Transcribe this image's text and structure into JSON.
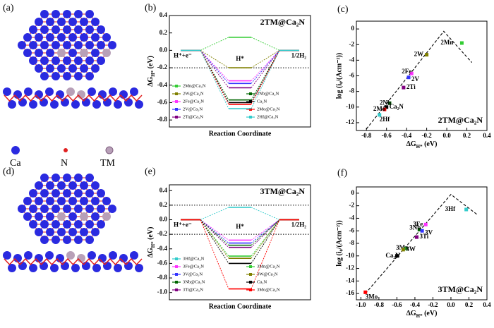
{
  "panel_labels": [
    "(a)",
    "(b)",
    "(c)",
    "(d)",
    "(e)",
    "(f)"
  ],
  "structure_legend": [
    "Ca",
    "N",
    "TM"
  ],
  "chart_data": [
    {
      "type": "energy_diagram",
      "title": "2TM@Ca₂N",
      "ylabel": {
        "main": "ΔG",
        "sub": "H*",
        "rest": " (eV)"
      },
      "xlabel": "Reaction Coordinate",
      "states": [
        "H⁺+e⁻",
        "H*",
        "1/2H₂"
      ],
      "ylim": [
        -0.88,
        0.4
      ],
      "yticks": [
        0.4,
        0.2,
        {
          "value": 0,
          "label": "0.0"
        },
        -0.2,
        -0.4,
        -0.6,
        -0.8
      ],
      "reference_lines": [
        -0.2
      ],
      "series": [
        {
          "name": "2Mn@Ca₂N",
          "color": "#33cc33",
          "values": [
            0,
            0.15,
            0
          ]
        },
        {
          "name": "2W@Ca₂N",
          "color": "#808000",
          "values": [
            0,
            -0.2,
            0
          ]
        },
        {
          "name": "2Fe@Ca₂N",
          "color": "#ff33ff",
          "values": [
            0,
            -0.35,
            0
          ]
        },
        {
          "name": "2V@Ca₂N",
          "color": "#3333ff",
          "values": [
            0,
            -0.38,
            0
          ]
        },
        {
          "name": "2Ti@Ca₂N",
          "color": "#800080",
          "values": [
            0,
            -0.43,
            0
          ]
        },
        {
          "name": "2Nb@Ca₂N",
          "color": "#006600",
          "values": [
            0,
            -0.57,
            0
          ]
        },
        {
          "name": "Ca₂N",
          "color": "#000000",
          "values": [
            0,
            -0.6,
            0
          ]
        },
        {
          "name": "2Mo@Ca₂N",
          "color": "#ff0000",
          "values": [
            0,
            -0.62,
            0
          ]
        },
        {
          "name": "2Hf@Ca₂N",
          "color": "#33cccc",
          "values": [
            0,
            -0.67,
            0
          ]
        }
      ]
    },
    {
      "type": "volcano",
      "title": "2TM@Ca₂N",
      "ylabel": "log (i₀/(Acm⁻²))",
      "xlabel": {
        "main": "ΔG",
        "sub": "H*",
        "rest": " (eV)"
      },
      "xlim": [
        -0.9,
        0.4
      ],
      "ylim": [
        -13,
        1
      ],
      "xticks": [
        -0.8,
        -0.6,
        -0.4,
        -0.2,
        {
          "value": 0,
          "label": "0.0"
        },
        0.2,
        0.4
      ],
      "yticks": [
        0,
        -2,
        -4,
        -6,
        -8,
        -10,
        -12
      ],
      "volcano_line": {
        "x": [
          -0.8,
          -0.03,
          0.25
        ],
        "y": [
          -12.8,
          -0.3,
          -4.3
        ]
      },
      "points": {
        "labels": [
          "2Mn",
          "2W",
          "2Fe",
          "2V",
          "2Ti",
          "2Nb",
          "Ca₂N",
          "2Mo",
          "2Hf"
        ],
        "colors": [
          "#33cc33",
          "#808000",
          "#ff33ff",
          "#3333ff",
          "#800080",
          "#006600",
          "#000000",
          "#ff0000",
          "#33cccc"
        ],
        "x": [
          0.15,
          -0.2,
          -0.35,
          -0.38,
          -0.43,
          -0.57,
          -0.6,
          -0.62,
          -0.67
        ],
        "y": [
          -1.8,
          -3.3,
          -5.7,
          -6.2,
          -7.5,
          -9.5,
          -10,
          -10.3,
          -11
        ]
      }
    },
    {
      "type": "energy_diagram",
      "title": "3TM@Ca₂N",
      "ylabel": {
        "main": "ΔG",
        "sub": "H*",
        "rest": " (eV)"
      },
      "xlabel": "Reaction Coordinate",
      "states": [
        "H⁺+e⁻",
        "H*",
        "1/2H₂"
      ],
      "ylim": [
        -1.1,
        0.48
      ],
      "yticks": [
        0.4,
        0.2,
        {
          "value": 0,
          "label": "0.0"
        },
        -0.2,
        -0.4,
        -0.6,
        -0.8,
        {
          "value": -1,
          "label": "-1.0"
        }
      ],
      "reference_lines": [
        0.2,
        -0.2
      ],
      "series": [
        {
          "name": "3Hf@Ca₂N",
          "color": "#33cccc",
          "values": [
            0,
            0.17,
            0
          ]
        },
        {
          "name": "3Fe@Ca₂N",
          "color": "#ff33ff",
          "values": [
            0,
            -0.28,
            0
          ]
        },
        {
          "name": "3V@Ca₂N",
          "color": "#3333ff",
          "values": [
            0,
            -0.32,
            0
          ]
        },
        {
          "name": "3Nb@Ca₂N",
          "color": "#006600",
          "values": [
            0,
            -0.35,
            0
          ]
        },
        {
          "name": "3Ti@Ca₂N",
          "color": "#800080",
          "values": [
            0,
            -0.38,
            0
          ]
        },
        {
          "name": "3Mn@Ca₂N",
          "color": "#33cc33",
          "values": [
            0,
            -0.5,
            0
          ]
        },
        {
          "name": "3W@Ca₂N",
          "color": "#808000",
          "values": [
            0,
            -0.53,
            0
          ]
        },
        {
          "name": "Ca₂N",
          "color": "#000000",
          "values": [
            0,
            -0.6,
            0
          ]
        },
        {
          "name": "3Mo@Ca₂N",
          "color": "#ff0000",
          "values": [
            0,
            -0.95,
            0
          ]
        }
      ]
    },
    {
      "type": "volcano",
      "title": "3TM@Ca₂N",
      "ylabel": "log (i₀/(Acm⁻²))",
      "xlabel": {
        "main": "ΔG",
        "sub": "H*",
        "rest": " (eV)"
      },
      "xlim": [
        -1.05,
        0.4
      ],
      "ylim": [
        -17,
        1
      ],
      "xticks": [
        {
          "value": -1,
          "label": "-1.0"
        },
        -0.8,
        -0.6,
        -0.4,
        -0.2,
        {
          "value": 0,
          "label": "0.0"
        },
        0.2,
        0.4
      ],
      "yticks": [
        0,
        -2,
        -4,
        -6,
        -8,
        -10,
        -12,
        -14,
        -16
      ],
      "volcano_line": {
        "x": [
          -0.95,
          0,
          0.3
        ],
        "y": [
          -16,
          -0.2,
          -3.5
        ]
      },
      "points": {
        "labels": [
          "3Hf",
          "3Fe",
          "3Nb",
          "3V",
          "3Ti",
          "3Mn",
          "3W",
          "Ca₂N",
          "3Mo"
        ],
        "colors": [
          "#33cccc",
          "#ff33ff",
          "#006600",
          "#3333ff",
          "#800080",
          "#33cc33",
          "#808000",
          "#000000",
          "#ff0000"
        ],
        "x": [
          0.17,
          -0.28,
          -0.35,
          -0.32,
          -0.38,
          -0.5,
          -0.53,
          -0.6,
          -0.95
        ],
        "y": [
          -2.6,
          -5,
          -5.8,
          -6,
          -7,
          -8.8,
          -9,
          -10,
          -15.8
        ]
      }
    }
  ]
}
